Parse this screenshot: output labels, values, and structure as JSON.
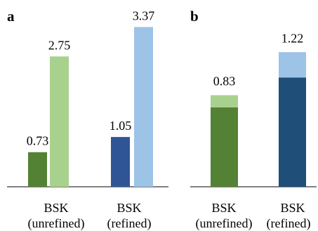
{
  "chart_data": [
    {
      "panel_label": "a",
      "type": "bar",
      "categories": [
        "BSK (unrefined)",
        "BSK (refined)"
      ],
      "category_lines": [
        [
          "BSK",
          "(unrefined)"
        ],
        [
          "BSK",
          "(refined)"
        ]
      ],
      "series": [
        {
          "values": [
            0.73,
            1.05
          ],
          "colors": [
            "#548235",
            "#2f5597"
          ]
        },
        {
          "values": [
            2.75,
            3.37
          ],
          "colors": [
            "#a9d18e",
            "#9dc3e6"
          ]
        }
      ],
      "value_labels": [
        "0.73",
        "2.75",
        "1.05",
        "3.37"
      ],
      "ylim": [
        0,
        3.6
      ],
      "grid": false,
      "legend": "none"
    },
    {
      "panel_label": "b",
      "type": "bar",
      "stacked": true,
      "categories": [
        "BSK (unrefined)",
        "BSK (refined)"
      ],
      "category_lines": [
        [
          "BSK",
          "(unrefined)"
        ],
        [
          "BSK",
          "(refined)"
        ]
      ],
      "series": [
        {
          "values": [
            0.72,
            0.99
          ],
          "colors": [
            "#548235",
            "#1f4e79"
          ]
        },
        {
          "values": [
            0.11,
            0.23
          ],
          "colors": [
            "#a9d18e",
            "#9dc3e6"
          ]
        }
      ],
      "totals": [
        0.83,
        1.22
      ],
      "value_labels": [
        "0.83",
        "1.22"
      ],
      "ylim": [
        0,
        1.4
      ],
      "grid": false,
      "legend": "none"
    }
  ]
}
